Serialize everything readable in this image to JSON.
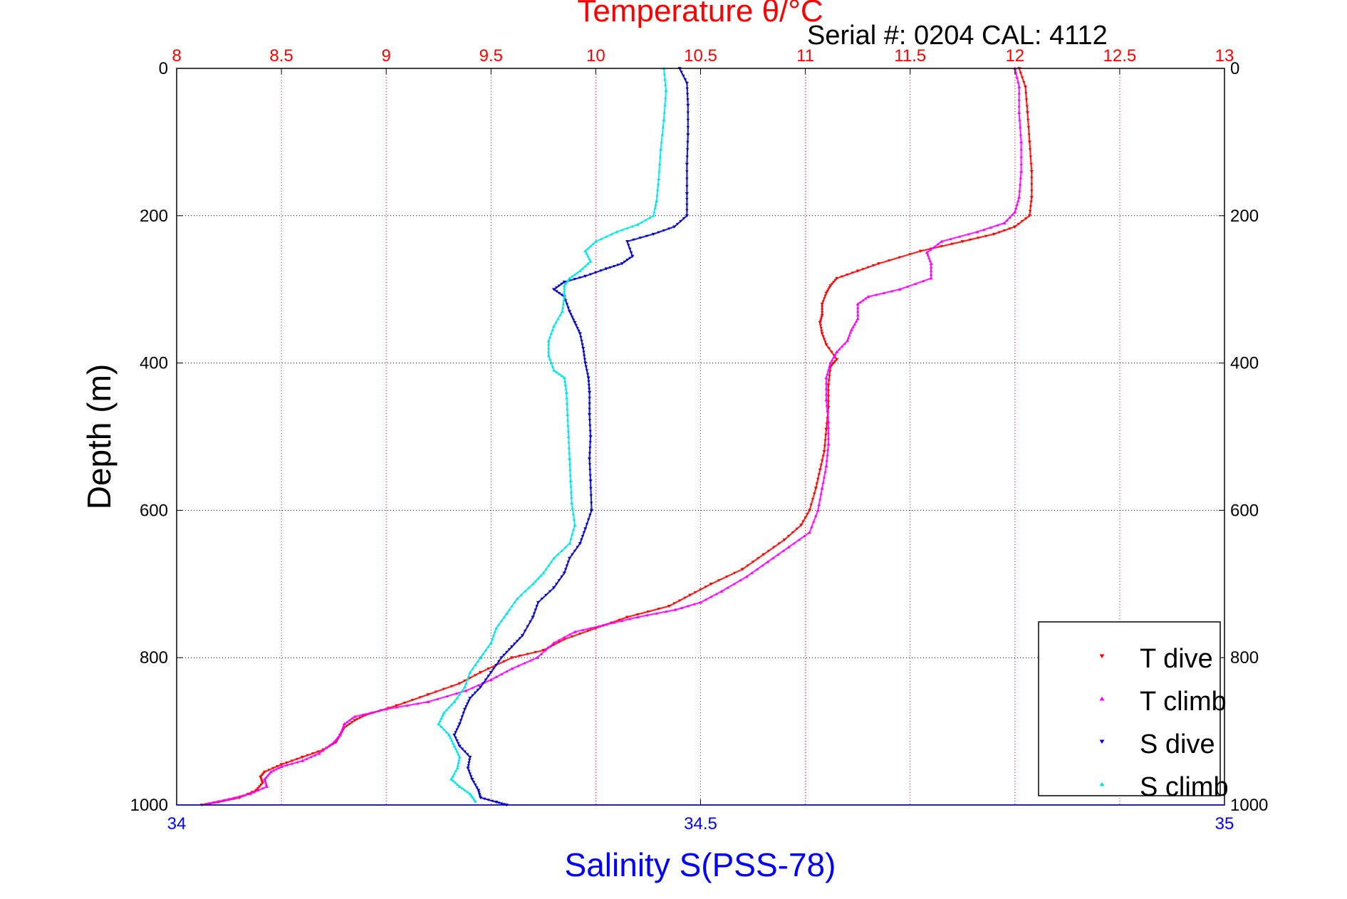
{
  "header": {
    "serial_text": "Serial #: 0204  CAL: 4112"
  },
  "colors": {
    "temperature_axis": "#ff0000",
    "salinity_axis": "#0000ff",
    "t_dive": "#ff0000",
    "t_climb": "#ff00ff",
    "s_dive": "#0000cc",
    "s_climb": "#00e5e5",
    "grid_temperature": "#ff0000",
    "grid_depth": "#000000"
  },
  "chart_data": {
    "type": "scatter",
    "title": "Temperature θ/°C",
    "xlabel_top": "Temperature θ/°C",
    "xlabel_bottom": "Salinity S(PSS-78)",
    "ylabel": "Depth (m)",
    "x_top_range": [
      8,
      13
    ],
    "x_bottom_range": [
      34,
      35
    ],
    "y_range": [
      0,
      1000
    ],
    "y_reversed": true,
    "x_top_ticks": [
      "8",
      "8.5",
      "9",
      "9.5",
      "10",
      "10.5",
      "11",
      "11.5",
      "12",
      "12.5",
      "13"
    ],
    "x_bottom_ticks": [
      "34",
      "34.5",
      "35"
    ],
    "y_ticks": [
      "0",
      "200",
      "400",
      "600",
      "800",
      "1000"
    ],
    "grid": true,
    "legend_position": "bottom-right",
    "series": [
      {
        "name": "T dive",
        "axis": "temperature",
        "marker": "triangle-down",
        "points": [
          [
            12.02,
            0
          ],
          [
            12.05,
            25
          ],
          [
            12.06,
            60
          ],
          [
            12.07,
            100
          ],
          [
            12.08,
            140
          ],
          [
            12.08,
            175
          ],
          [
            12.07,
            200
          ],
          [
            12.0,
            215
          ],
          [
            11.9,
            225
          ],
          [
            11.75,
            235
          ],
          [
            11.55,
            248
          ],
          [
            11.35,
            265
          ],
          [
            11.25,
            275
          ],
          [
            11.15,
            285
          ],
          [
            11.12,
            295
          ],
          [
            11.1,
            305
          ],
          [
            11.08,
            320
          ],
          [
            11.08,
            335
          ],
          [
            11.07,
            345
          ],
          [
            11.08,
            360
          ],
          [
            11.1,
            375
          ],
          [
            11.15,
            395
          ],
          [
            11.12,
            405
          ],
          [
            11.11,
            430
          ],
          [
            11.11,
            460
          ],
          [
            11.1,
            490
          ],
          [
            11.09,
            520
          ],
          [
            11.07,
            545
          ],
          [
            11.05,
            570
          ],
          [
            11.02,
            600
          ],
          [
            10.98,
            620
          ],
          [
            10.9,
            640
          ],
          [
            10.8,
            660
          ],
          [
            10.7,
            680
          ],
          [
            10.55,
            700
          ],
          [
            10.45,
            715
          ],
          [
            10.35,
            730
          ],
          [
            10.15,
            745
          ],
          [
            10.0,
            760
          ],
          [
            9.85,
            775
          ],
          [
            9.75,
            790
          ],
          [
            9.6,
            800
          ],
          [
            9.45,
            820
          ],
          [
            9.35,
            835
          ],
          [
            9.2,
            850
          ],
          [
            9.05,
            865
          ],
          [
            8.9,
            878
          ],
          [
            8.85,
            885
          ],
          [
            8.8,
            895
          ],
          [
            8.78,
            905
          ],
          [
            8.76,
            915
          ],
          [
            8.7,
            925
          ],
          [
            8.6,
            935
          ],
          [
            8.5,
            945
          ],
          [
            8.42,
            955
          ],
          [
            8.4,
            962
          ],
          [
            8.41,
            970
          ],
          [
            8.38,
            980
          ],
          [
            8.3,
            990
          ],
          [
            8.2,
            996
          ],
          [
            8.12,
            1000
          ]
        ]
      },
      {
        "name": "T climb",
        "axis": "temperature",
        "marker": "triangle-up",
        "points": [
          [
            12.0,
            0
          ],
          [
            12.02,
            25
          ],
          [
            12.02,
            60
          ],
          [
            12.03,
            100
          ],
          [
            12.03,
            140
          ],
          [
            12.02,
            175
          ],
          [
            12.0,
            195
          ],
          [
            11.95,
            210
          ],
          [
            11.82,
            222
          ],
          [
            11.65,
            235
          ],
          [
            11.58,
            250
          ],
          [
            11.6,
            265
          ],
          [
            11.6,
            285
          ],
          [
            11.45,
            300
          ],
          [
            11.3,
            310
          ],
          [
            11.25,
            320
          ],
          [
            11.25,
            340
          ],
          [
            11.22,
            355
          ],
          [
            11.2,
            370
          ],
          [
            11.15,
            385
          ],
          [
            11.12,
            400
          ],
          [
            11.1,
            420
          ],
          [
            11.1,
            450
          ],
          [
            11.11,
            480
          ],
          [
            11.11,
            510
          ],
          [
            11.1,
            540
          ],
          [
            11.08,
            570
          ],
          [
            11.06,
            600
          ],
          [
            11.02,
            630
          ],
          [
            10.92,
            650
          ],
          [
            10.82,
            670
          ],
          [
            10.72,
            690
          ],
          [
            10.6,
            710
          ],
          [
            10.5,
            725
          ],
          [
            10.38,
            735
          ],
          [
            10.2,
            745
          ],
          [
            10.05,
            755
          ],
          [
            9.9,
            765
          ],
          [
            9.8,
            780
          ],
          [
            9.72,
            800
          ],
          [
            9.6,
            815
          ],
          [
            9.5,
            830
          ],
          [
            9.38,
            845
          ],
          [
            9.2,
            860
          ],
          [
            9.0,
            870
          ],
          [
            8.85,
            880
          ],
          [
            8.8,
            890
          ],
          [
            8.78,
            905
          ],
          [
            8.75,
            915
          ],
          [
            8.68,
            930
          ],
          [
            8.6,
            940
          ],
          [
            8.5,
            948
          ],
          [
            8.45,
            955
          ],
          [
            8.42,
            965
          ],
          [
            8.43,
            975
          ],
          [
            8.35,
            985
          ],
          [
            8.25,
            992
          ],
          [
            8.15,
            998
          ]
        ]
      },
      {
        "name": "S dive",
        "axis": "salinity",
        "marker": "triangle-down",
        "points": [
          [
            34.48,
            0
          ],
          [
            34.487,
            20
          ],
          [
            34.488,
            50
          ],
          [
            34.488,
            90
          ],
          [
            34.487,
            130
          ],
          [
            34.487,
            170
          ],
          [
            34.487,
            200
          ],
          [
            34.475,
            215
          ],
          [
            34.455,
            225
          ],
          [
            34.43,
            235
          ],
          [
            34.435,
            255
          ],
          [
            34.425,
            265
          ],
          [
            34.41,
            272
          ],
          [
            34.39,
            282
          ],
          [
            34.37,
            290
          ],
          [
            34.36,
            300
          ],
          [
            34.37,
            310
          ],
          [
            34.375,
            330
          ],
          [
            34.38,
            345
          ],
          [
            34.385,
            360
          ],
          [
            34.388,
            380
          ],
          [
            34.39,
            400
          ],
          [
            34.393,
            420
          ],
          [
            34.394,
            440
          ],
          [
            34.394,
            470
          ],
          [
            34.395,
            500
          ],
          [
            34.394,
            530
          ],
          [
            34.395,
            560
          ],
          [
            34.396,
            600
          ],
          [
            34.39,
            625
          ],
          [
            34.385,
            645
          ],
          [
            34.375,
            665
          ],
          [
            34.37,
            685
          ],
          [
            34.36,
            705
          ],
          [
            34.345,
            725
          ],
          [
            34.34,
            745
          ],
          [
            34.33,
            770
          ],
          [
            34.32,
            785
          ],
          [
            34.31,
            800
          ],
          [
            34.3,
            820
          ],
          [
            34.29,
            840
          ],
          [
            34.28,
            855
          ],
          [
            34.275,
            870
          ],
          [
            34.27,
            890
          ],
          [
            34.265,
            905
          ],
          [
            34.27,
            920
          ],
          [
            34.28,
            935
          ],
          [
            34.278,
            950
          ],
          [
            34.282,
            965
          ],
          [
            34.288,
            980
          ],
          [
            34.29,
            990
          ],
          [
            34.305,
            996
          ],
          [
            34.315,
            1000
          ]
        ]
      },
      {
        "name": "S climb",
        "axis": "salinity",
        "marker": "triangle-up",
        "points": [
          [
            34.465,
            0
          ],
          [
            34.467,
            30
          ],
          [
            34.465,
            70
          ],
          [
            34.462,
            110
          ],
          [
            34.46,
            150
          ],
          [
            34.458,
            180
          ],
          [
            34.455,
            200
          ],
          [
            34.44,
            212
          ],
          [
            34.42,
            222
          ],
          [
            34.4,
            235
          ],
          [
            34.39,
            248
          ],
          [
            34.395,
            262
          ],
          [
            34.385,
            275
          ],
          [
            34.375,
            285
          ],
          [
            34.37,
            295
          ],
          [
            34.37,
            310
          ],
          [
            34.368,
            330
          ],
          [
            34.36,
            350
          ],
          [
            34.355,
            370
          ],
          [
            34.355,
            390
          ],
          [
            34.36,
            410
          ],
          [
            34.37,
            420
          ],
          [
            34.372,
            440
          ],
          [
            34.373,
            470
          ],
          [
            34.374,
            500
          ],
          [
            34.375,
            530
          ],
          [
            34.376,
            560
          ],
          [
            34.377,
            590
          ],
          [
            34.38,
            620
          ],
          [
            34.375,
            645
          ],
          [
            34.36,
            665
          ],
          [
            34.35,
            685
          ],
          [
            34.34,
            700
          ],
          [
            34.325,
            720
          ],
          [
            34.315,
            740
          ],
          [
            34.305,
            760
          ],
          [
            34.3,
            780
          ],
          [
            34.29,
            800
          ],
          [
            34.28,
            820
          ],
          [
            34.275,
            840
          ],
          [
            34.265,
            860
          ],
          [
            34.255,
            875
          ],
          [
            34.25,
            890
          ],
          [
            34.26,
            905
          ],
          [
            34.265,
            920
          ],
          [
            34.27,
            935
          ],
          [
            34.268,
            950
          ],
          [
            34.262,
            965
          ],
          [
            34.27,
            975
          ],
          [
            34.28,
            985
          ],
          [
            34.285,
            995
          ]
        ]
      }
    ]
  }
}
